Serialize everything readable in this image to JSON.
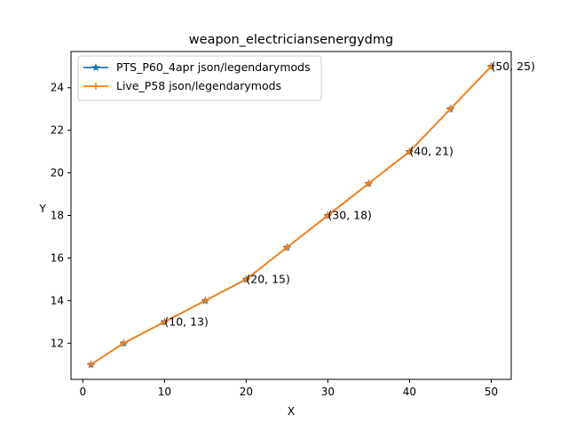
{
  "chart_data": {
    "type": "line",
    "title": "weapon_electriciansenergydmg",
    "xlabel": "X",
    "ylabel": "Y",
    "xlim": [
      -1.45,
      52.45
    ],
    "ylim": [
      10.3,
      25.7
    ],
    "x_ticks": [
      0,
      10,
      20,
      30,
      40,
      50
    ],
    "y_ticks": [
      12,
      14,
      16,
      18,
      20,
      22,
      24
    ],
    "x": [
      1,
      5,
      10,
      15,
      20,
      25,
      30,
      35,
      40,
      45,
      50
    ],
    "series": [
      {
        "name": "PTS_P60_4apr json/legendarymods",
        "values": [
          11,
          12,
          13,
          14,
          15,
          16.5,
          18,
          19.5,
          21,
          23,
          25
        ],
        "color": "#1f77b4",
        "marker": "star"
      },
      {
        "name": "Live_P58 json/legendarymods",
        "values": [
          11,
          12,
          13,
          14,
          15,
          16.5,
          18,
          19.5,
          21,
          23,
          25
        ],
        "color": "#ff7f0e",
        "marker": "plus"
      }
    ],
    "annotations": [
      {
        "x": 10,
        "y": 13,
        "text": "(10, 13)"
      },
      {
        "x": 20,
        "y": 15,
        "text": "(20, 15)"
      },
      {
        "x": 30,
        "y": 18,
        "text": "(30, 18)"
      },
      {
        "x": 40,
        "y": 21,
        "text": "(40, 21)"
      },
      {
        "x": 50,
        "y": 25,
        "text": "(50, 25)"
      }
    ],
    "legend_position": "upper-left",
    "grid": false
  }
}
